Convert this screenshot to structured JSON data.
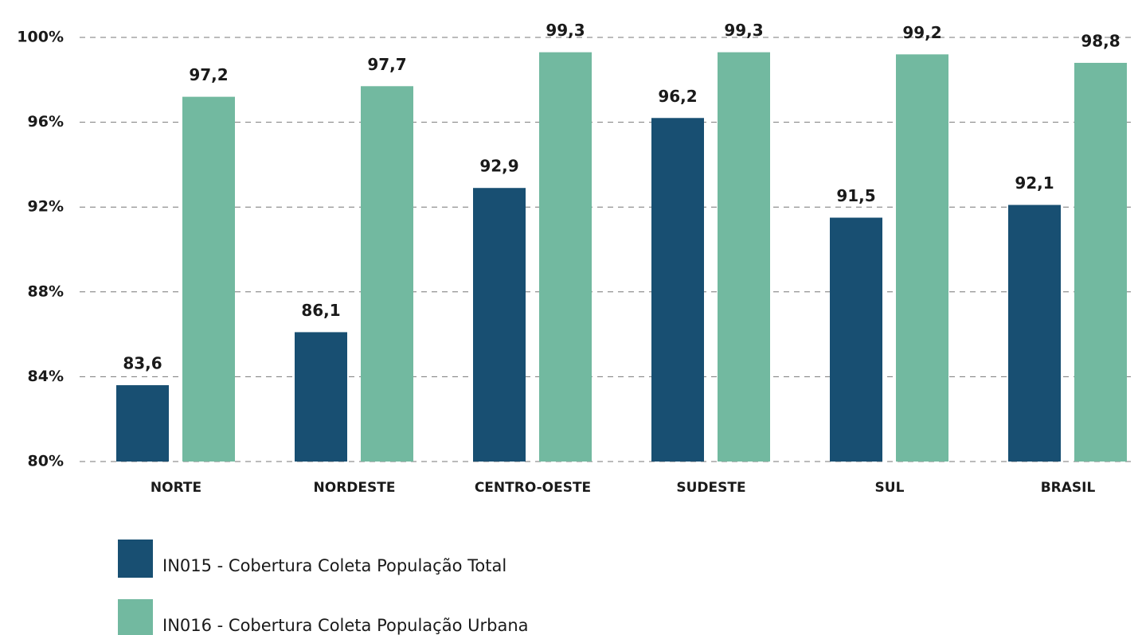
{
  "chart_data": {
    "type": "bar",
    "categories": [
      "NORTE",
      "NORDESTE",
      "CENTRO-OESTE",
      "SUDESTE",
      "SUL",
      "BRASIL"
    ],
    "series": [
      {
        "name": "IN015 - Cobertura Coleta População Total",
        "color": "#184f72",
        "values": [
          83.6,
          86.1,
          92.9,
          96.2,
          91.5,
          92.1
        ],
        "value_labels": [
          "83,6",
          "86,1",
          "92,9",
          "96,2",
          "91,5",
          "92,1"
        ]
      },
      {
        "name": "IN016 - Cobertura Coleta População Urbana",
        "color": "#72b9a0",
        "values": [
          97.2,
          97.7,
          99.3,
          99.3,
          99.2,
          98.8
        ],
        "value_labels": [
          "97,2",
          "97,7",
          "99,3",
          "99,3",
          "99,2",
          "98,8"
        ]
      }
    ],
    "ylim": [
      80,
      100
    ],
    "yticks": [
      {
        "value": 80,
        "label": "80%"
      },
      {
        "value": 84,
        "label": "84%"
      },
      {
        "value": 88,
        "label": "88%"
      },
      {
        "value": 92,
        "label": "92%"
      },
      {
        "value": 96,
        "label": "96%"
      },
      {
        "value": 100,
        "label": "100%"
      }
    ],
    "grid": true
  }
}
